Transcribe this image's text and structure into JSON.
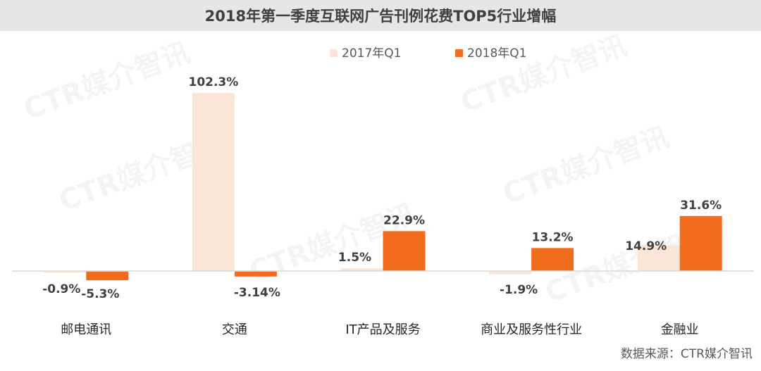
{
  "chart_data": {
    "type": "bar",
    "title": "2018年第一季度互联网广告刊例花费TOP5行业增幅",
    "categories": [
      "邮电通讯",
      "交通",
      "IT产品及服务",
      "商业及服务性行业",
      "金融业"
    ],
    "series": [
      {
        "name": "2017年Q1",
        "values": [
          -0.9,
          102.3,
          1.5,
          -1.9,
          14.9
        ],
        "labels": [
          "-0.9%",
          "102.3%",
          "1.5%",
          "-1.9%",
          "14.9%"
        ]
      },
      {
        "name": "2018年Q1",
        "values": [
          -5.3,
          -3.14,
          22.9,
          13.2,
          31.6
        ],
        "labels": [
          "-5.3%",
          "-3.14%",
          "22.9%",
          "13.2%",
          "31.6%"
        ]
      }
    ],
    "colors": [
      "#fbe5d6",
      "#f26c1e"
    ],
    "legend_position": "top-center",
    "grid": false
  },
  "source": "数据来源：CTR媒介智讯",
  "watermark": "CTR媒介智讯"
}
